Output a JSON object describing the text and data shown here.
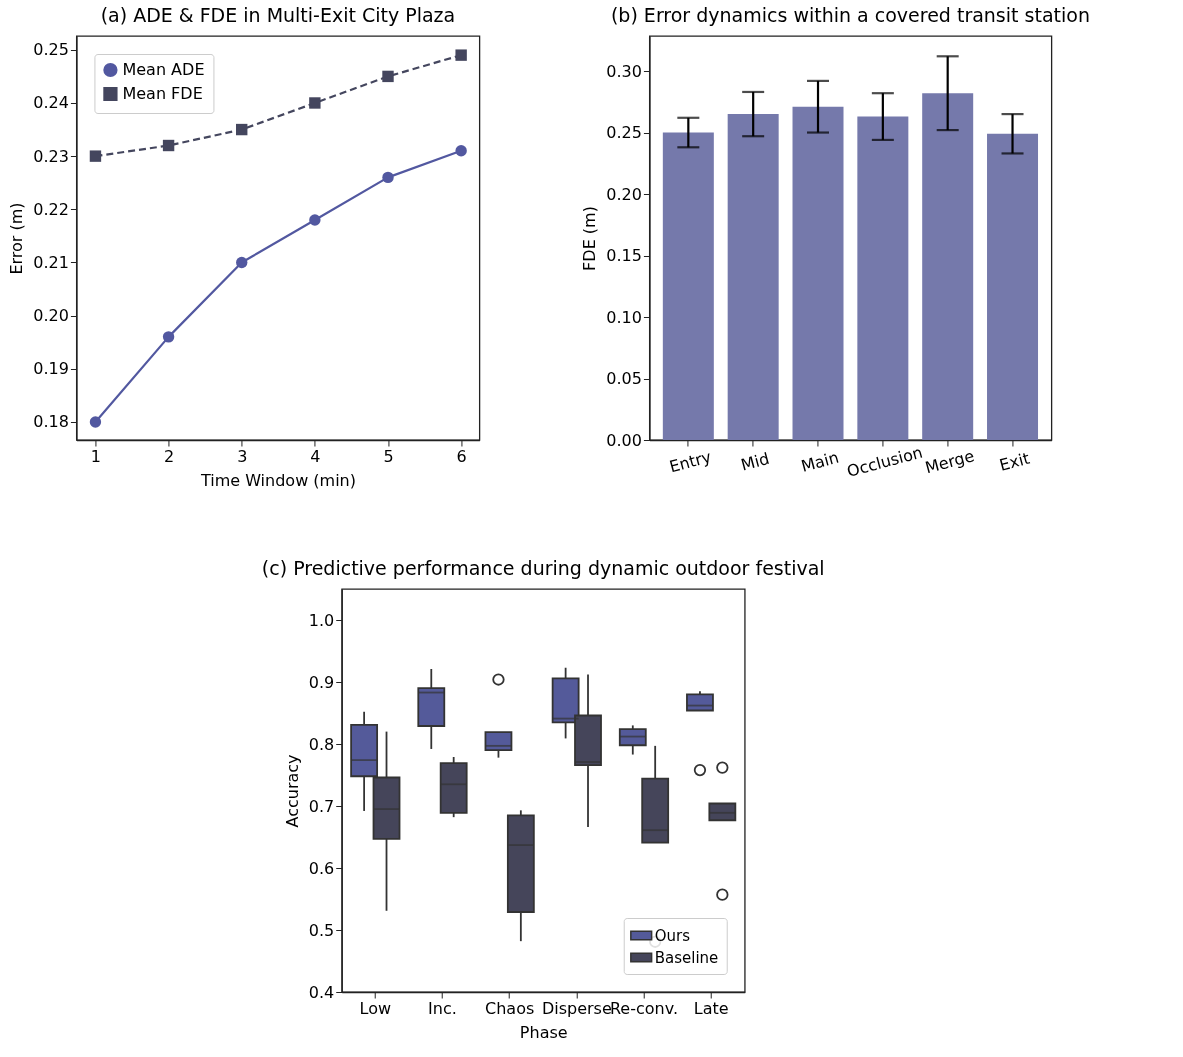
{
  "chart_data": [
    {
      "type": "line",
      "title": "(a) ADE & FDE in Multi-Exit City Plaza",
      "xlabel": "Time Window (min)",
      "ylabel": "Error (m)",
      "x": [
        1,
        2,
        3,
        4,
        5,
        6
      ],
      "series": [
        {
          "name": "Mean ADE",
          "color": "#5258a0",
          "marker": "circle",
          "line_style": "solid",
          "values": [
            0.18,
            0.196,
            0.21,
            0.218,
            0.226,
            0.231
          ]
        },
        {
          "name": "Mean FDE",
          "color": "#44465e",
          "marker": "square",
          "line_style": "dashed",
          "values": [
            0.23,
            0.232,
            0.235,
            0.24,
            0.245,
            0.249
          ]
        }
      ],
      "xlim": [
        0.74,
        6.25
      ],
      "xticks": [
        1,
        2,
        3,
        4,
        5,
        6
      ],
      "ylim": [
        0.1766,
        0.2526
      ],
      "yticks": [
        0.18,
        0.19,
        {
          "value": 0.2,
          "label": "0.20"
        },
        0.21,
        0.22,
        0.23,
        0.24,
        0.25
      ],
      "legend": "top left"
    },
    {
      "type": "bar",
      "title": "(b) Error dynamics within a covered transit station",
      "ylabel": "FDE (m)",
      "categories": [
        "Entry",
        "Mid",
        "Main",
        "Occlusion",
        "Merge",
        "Exit"
      ],
      "values": [
        0.25,
        0.265,
        0.271,
        0.263,
        0.282,
        0.249
      ],
      "errors": [
        0.012,
        0.018,
        0.021,
        0.019,
        0.03,
        0.016
      ],
      "color": "#7579ab",
      "ylim": [
        0,
        0.3285
      ],
      "yticks": [
        {
          "value": 0,
          "label": "0.00"
        },
        0.05,
        {
          "value": 0.1,
          "label": "0.10"
        },
        0.15,
        {
          "value": 0.2,
          "label": "0.20"
        },
        0.25,
        {
          "value": 0.3,
          "label": "0.30"
        }
      ]
    },
    {
      "type": "box",
      "title": "(c) Predictive performance during dynamic outdoor festival",
      "xlabel": "Phase",
      "ylabel": "Accuracy",
      "categories": [
        "Low",
        "Inc.",
        "Chaos",
        "Disperse",
        "Re-conv.",
        "Late"
      ],
      "series": [
        {
          "name": "Ours",
          "color": "#545a9a",
          "boxes": [
            {
              "low": 0.692,
              "q1": 0.748,
              "median": 0.774,
              "q3": 0.831,
              "high": 0.852
            },
            {
              "low": 0.792,
              "q1": 0.829,
              "median": 0.883,
              "q3": 0.89,
              "high": 0.921
            },
            {
              "low": 0.778,
              "q1": 0.79,
              "median": 0.797,
              "q3": 0.819,
              "high": 0.819,
              "outliers": [
                0.904
              ]
            },
            {
              "low": 0.809,
              "q1": 0.835,
              "median": 0.841,
              "q3": 0.906,
              "high": 0.923
            },
            {
              "low": 0.783,
              "q1": 0.798,
              "median": 0.812,
              "q3": 0.824,
              "high": 0.83
            },
            {
              "low": 0.854,
              "q1": 0.854,
              "median": 0.862,
              "q3": 0.88,
              "high": 0.885,
              "outliers": [
                0.758
              ]
            }
          ]
        },
        {
          "name": "Baseline",
          "color": "#45455a",
          "boxes": [
            {
              "low": 0.531,
              "q1": 0.647,
              "median": 0.695,
              "q3": 0.746,
              "high": 0.82
            },
            {
              "low": 0.682,
              "q1": 0.689,
              "median": 0.735,
              "q3": 0.769,
              "high": 0.779
            },
            {
              "low": 0.482,
              "q1": 0.529,
              "median": 0.637,
              "q3": 0.685,
              "high": 0.693
            },
            {
              "low": 0.666,
              "q1": 0.766,
              "median": 0.771,
              "q3": 0.846,
              "high": 0.912
            },
            {
              "low": 0.641,
              "q1": 0.641,
              "median": 0.661,
              "q3": 0.744,
              "high": 0.797,
              "outliers": [
                0.481
              ]
            },
            {
              "low": 0.677,
              "q1": 0.677,
              "median": 0.689,
              "q3": 0.704,
              "high": 0.704,
              "outliers": [
                0.762,
                0.557
              ]
            }
          ]
        }
      ],
      "ylim": [
        0.4,
        1.05
      ],
      "yticks": [
        0.4,
        0.5,
        0.6,
        0.7,
        0.8,
        0.9,
        {
          "value": 1,
          "label": "1.0"
        }
      ],
      "legend": "bottom right"
    }
  ]
}
